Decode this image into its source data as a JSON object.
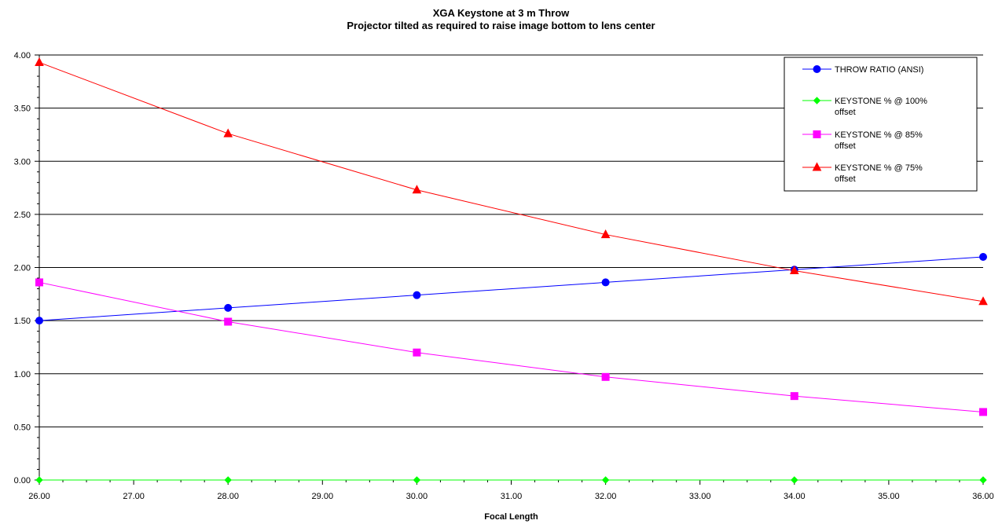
{
  "chart_data": {
    "type": "line",
    "title": "XGA Keystone at 3 m Throw",
    "subtitle": "Projector tilted as required to raise image bottom to lens center",
    "xlabel": "Focal Length",
    "ylabel": "",
    "xlim": [
      26,
      36
    ],
    "ylim": [
      0,
      4
    ],
    "x_ticks": [
      "26.00",
      "27.00",
      "28.00",
      "29.00",
      "30.00",
      "31.00",
      "32.00",
      "33.00",
      "34.00",
      "35.00",
      "36.00"
    ],
    "y_ticks": [
      "0.00",
      "0.50",
      "1.00",
      "1.50",
      "2.00",
      "2.50",
      "3.00",
      "3.50",
      "4.00"
    ],
    "grid": "horizontal",
    "legend_position": "top-right",
    "x": [
      26,
      28,
      30,
      32,
      34,
      36
    ],
    "series": [
      {
        "name": "THROW RATIO (ANSI)",
        "color": "#0000ff",
        "marker": "circle",
        "values": [
          1.5,
          1.62,
          1.74,
          1.86,
          1.98,
          2.1
        ]
      },
      {
        "name": "KEYSTONE % @ 100% offset",
        "color": "#00ff00",
        "marker": "diamond",
        "values": [
          0,
          0,
          0,
          0,
          0,
          0
        ]
      },
      {
        "name": "KEYSTONE % @ 85% offset",
        "color": "#ff00ff",
        "marker": "square",
        "values": [
          1.86,
          1.49,
          1.2,
          0.97,
          0.79,
          0.64
        ]
      },
      {
        "name": "KEYSTONE % @ 75% offset",
        "color": "#ff0000",
        "marker": "triangle",
        "values": [
          3.93,
          3.26,
          2.73,
          2.31,
          1.97,
          1.68
        ]
      }
    ]
  }
}
